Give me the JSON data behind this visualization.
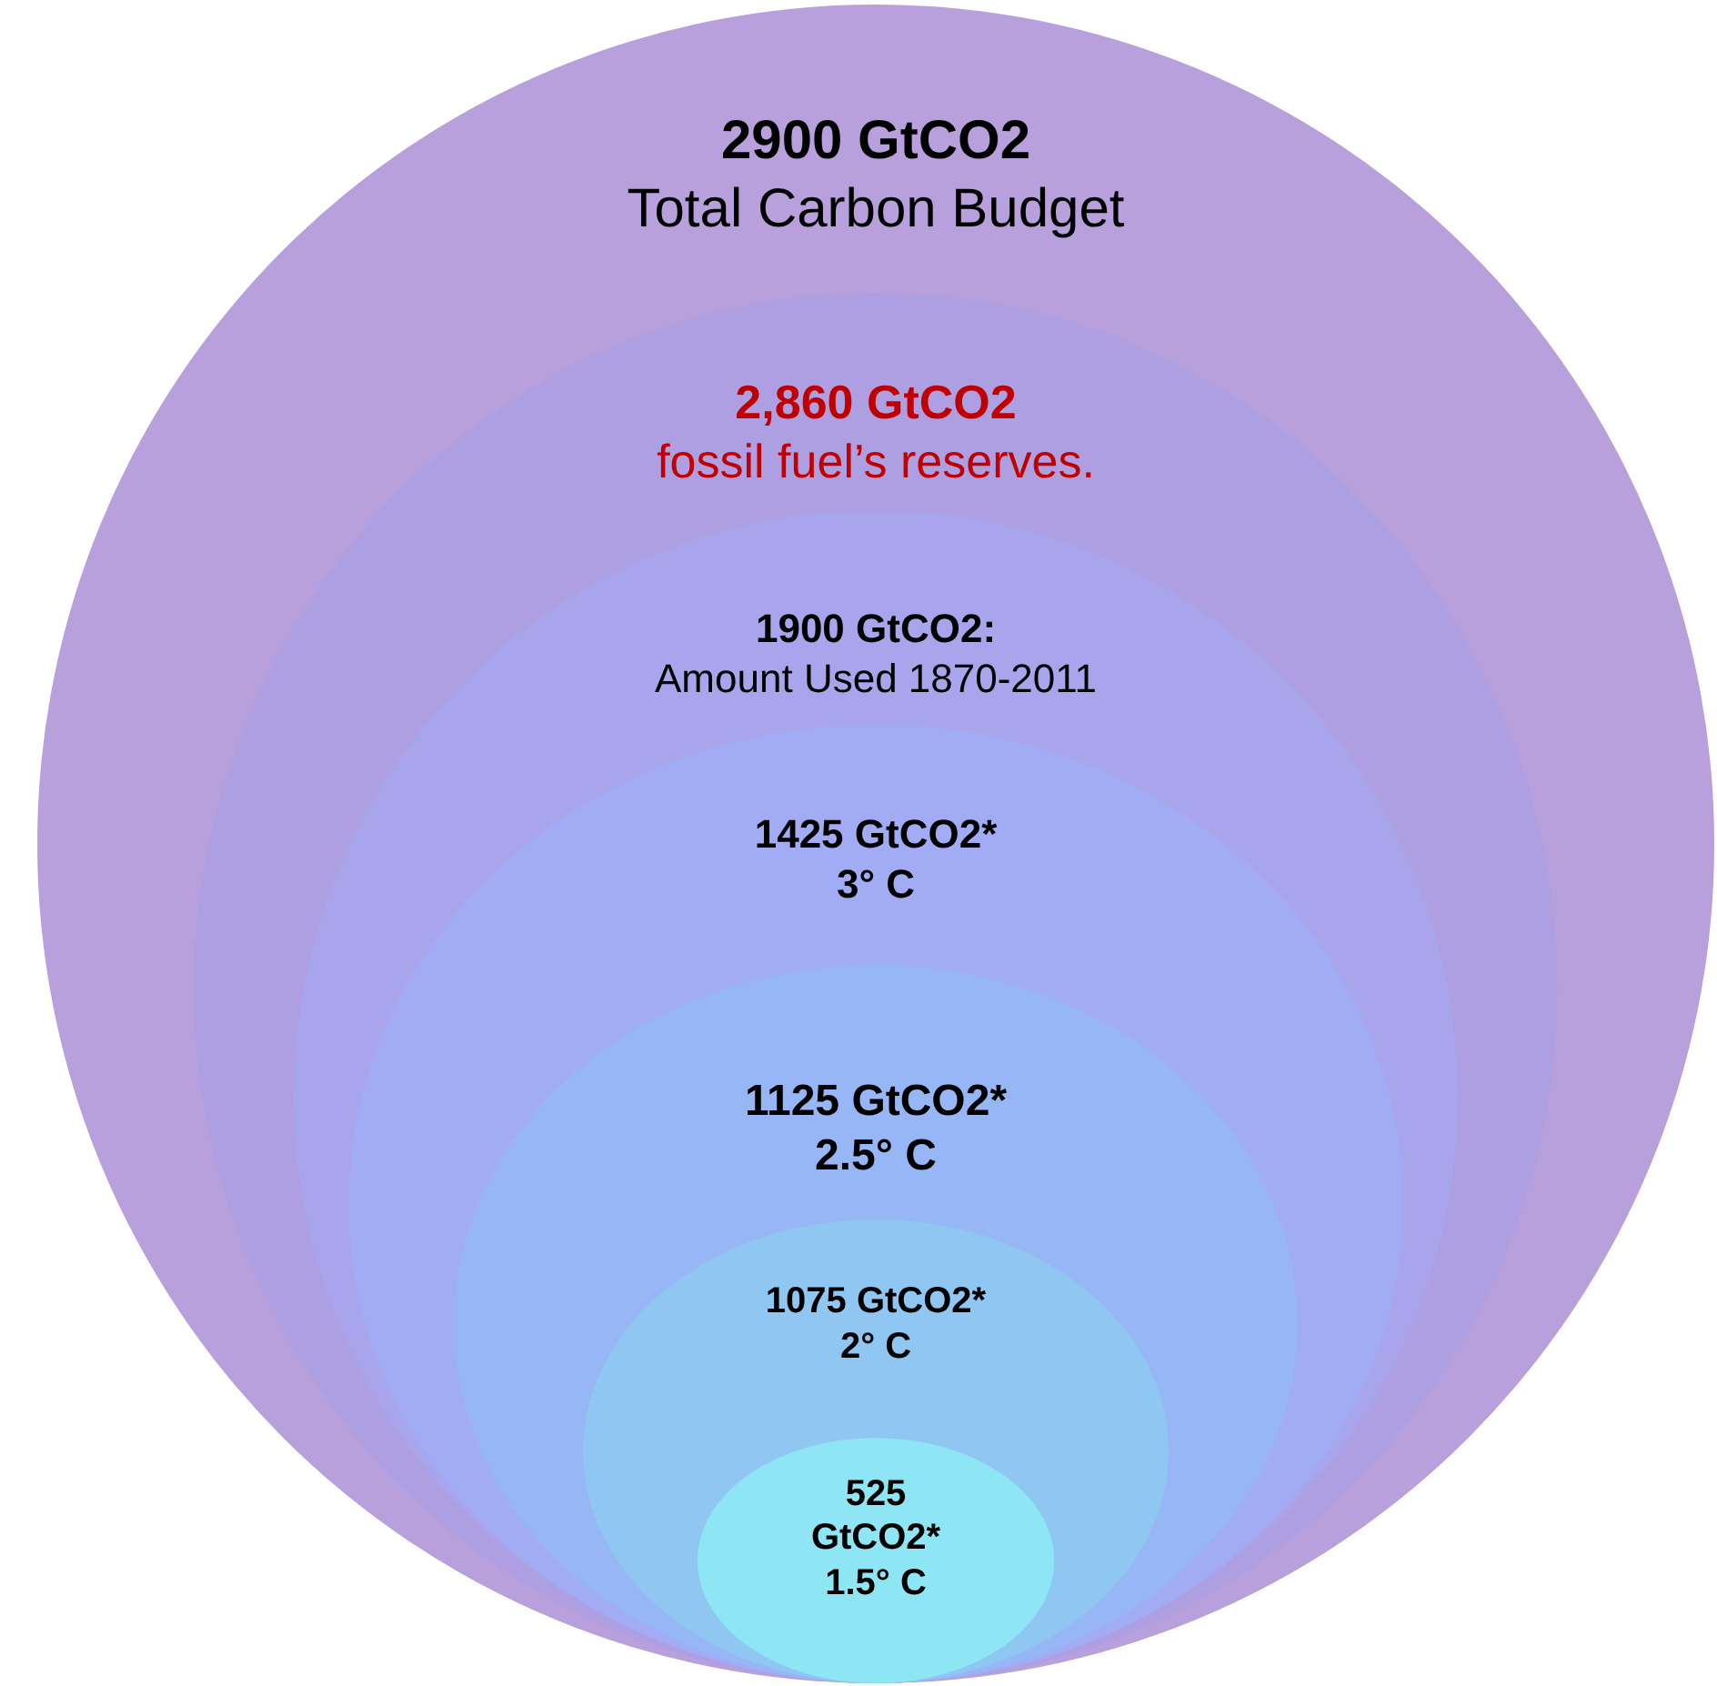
{
  "chart_data": {
    "type": "other",
    "value_labels": [
      "2900 GtCO2",
      "2,860 GtCO2",
      "1900 GtCO2:",
      "1425 GtCO2*",
      "1125 GtCO2*",
      "1075 GtCO2*",
      "525 GtCO2*"
    ],
    "categories": [
      "Total Carbon Budget",
      "fossil fuel’s reserves.",
      "Amount Used 1870-2011",
      "3° C",
      "2.5° C",
      "2° C",
      "1.5° C"
    ],
    "values": [
      2900,
      2860,
      1900,
      1425,
      1125,
      1075,
      525
    ],
    "colors": [
      "#b8a0dc",
      "#ae9fe2",
      "#a8a5ec",
      "#a2acf4",
      "#97b6f5",
      "#90c6f2",
      "#8ee6f4"
    ]
  }
}
